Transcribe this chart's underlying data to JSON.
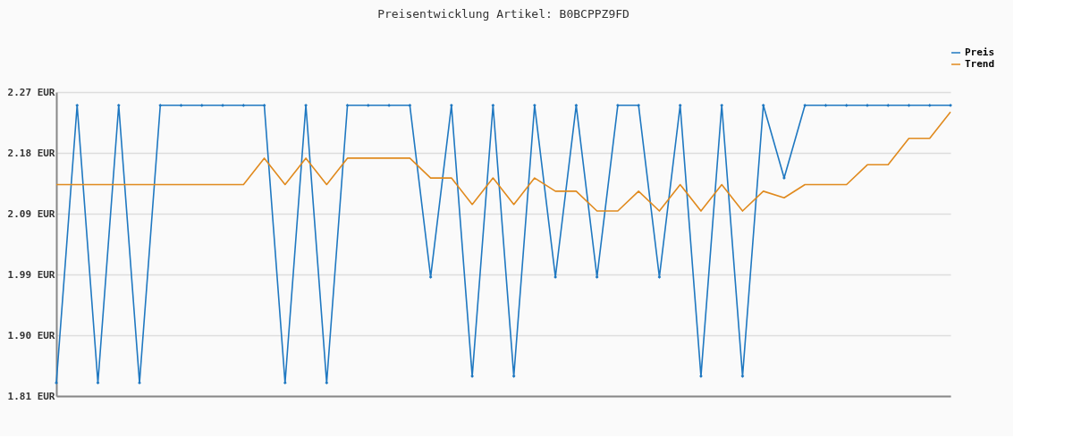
{
  "chart_data": {
    "type": "line",
    "title": "Preisentwicklung Artikel: B0BCPPZ9FD",
    "categories": [
      null,
      null,
      null,
      null,
      null,
      null,
      null,
      null,
      null,
      null,
      null,
      null,
      null,
      null,
      null,
      null,
      null,
      null,
      null,
      null,
      null,
      null,
      null,
      null,
      null,
      null,
      null,
      null,
      null,
      null,
      null,
      null,
      null,
      null,
      null,
      null,
      null,
      null,
      null,
      null,
      null,
      null,
      null,
      null
    ],
    "series": [
      {
        "name": "Preis",
        "color": "#1f78c1",
        "marker": "diamond",
        "values": [
          1.83,
          2.25,
          1.83,
          2.25,
          1.83,
          2.25,
          2.25,
          2.25,
          2.25,
          2.25,
          2.25,
          1.83,
          2.25,
          1.83,
          2.25,
          2.25,
          2.25,
          2.25,
          1.99,
          2.25,
          1.84,
          2.25,
          1.84,
          2.25,
          1.99,
          2.25,
          1.99,
          2.25,
          2.25,
          1.99,
          2.25,
          1.84,
          2.25,
          1.84,
          2.25,
          2.14,
          2.25,
          2.25,
          2.25,
          2.25,
          2.25,
          2.25,
          2.25,
          2.25
        ]
      },
      {
        "name": "Trend",
        "color": "#e08a1e",
        "marker": "none",
        "values": [
          2.13,
          2.13,
          2.13,
          2.13,
          2.13,
          2.13,
          2.13,
          2.13,
          2.13,
          2.13,
          2.17,
          2.13,
          2.17,
          2.13,
          2.17,
          2.17,
          2.17,
          2.17,
          2.14,
          2.14,
          2.1,
          2.14,
          2.1,
          2.14,
          2.12,
          2.12,
          2.09,
          2.09,
          2.12,
          2.09,
          2.13,
          2.09,
          2.13,
          2.09,
          2.12,
          2.11,
          2.13,
          2.13,
          2.13,
          2.16,
          2.16,
          2.2,
          2.2,
          2.24
        ]
      }
    ],
    "ylim": [
      1.81,
      2.27
    ],
    "yticks": [
      {
        "value": 1.81,
        "label": "1.81 EUR"
      },
      {
        "value": 1.902,
        "label": "1.90 EUR"
      },
      {
        "value": 1.994,
        "label": "1.99 EUR"
      },
      {
        "value": 2.086,
        "label": "2.09 EUR"
      },
      {
        "value": 2.178,
        "label": "2.18 EUR"
      },
      {
        "value": 2.27,
        "label": "2.27 EUR"
      }
    ],
    "grid": "y",
    "legend": "top right",
    "line_style": "solid"
  }
}
